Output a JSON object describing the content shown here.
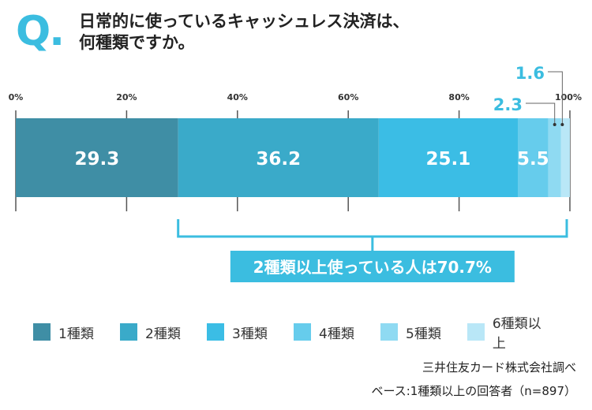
{
  "header": {
    "q_mark": "Q.",
    "title_line1": "日常的に使っているキャッシュレス決済は、",
    "title_line2": "何種類ですか。"
  },
  "chart_data": {
    "type": "bar",
    "orientation": "horizontal-stacked",
    "xlim": [
      0,
      100
    ],
    "ticks": [
      "0%",
      "20%",
      "40%",
      "60%",
      "80%",
      "100%"
    ],
    "tick_values": [
      0,
      20,
      40,
      60,
      80,
      100
    ],
    "series": [
      {
        "name": "1種類",
        "value": 29.3,
        "label": "29.3",
        "color": "#3f8ea5"
      },
      {
        "name": "2種類",
        "value": 36.2,
        "label": "36.2",
        "color": "#3aaac9"
      },
      {
        "name": "3種類",
        "value": 25.1,
        "label": "25.1",
        "color": "#3bbde5"
      },
      {
        "name": "4種類",
        "value": 5.5,
        "label": "5.5",
        "color": "#66ccec"
      },
      {
        "name": "5種類",
        "value": 2.3,
        "label": "2.3",
        "color": "#8fdaf2"
      },
      {
        "name": "6種類以上",
        "value": 1.6,
        "label": "1.6",
        "color": "#b9e7f7"
      }
    ],
    "annotation": "2種類以上使っている人は70.7%",
    "annotation_range": [
      29.3,
      100
    ]
  },
  "source": {
    "line1": "三井住友カード株式会社調べ",
    "line2": "ベース:1種類以上の回答者（n=897）"
  },
  "colors": {
    "accent": "#3bbde0",
    "axis": "#555555"
  }
}
